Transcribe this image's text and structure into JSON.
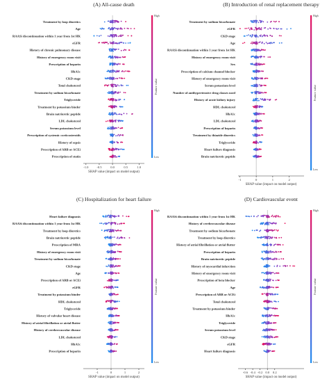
{
  "colors": {
    "high": "#e8115b",
    "mid": "#8a3bc4",
    "low": "#1f8ef0",
    "zero_line": "#aaaaaa"
  },
  "colorbar": {
    "high_label": "High",
    "low_label": "Low",
    "title": "Feature value"
  },
  "chart_data": [
    {
      "type": "scatter",
      "title": "(A) All-cause death",
      "xlabel": "SHAP value (impact on model output)",
      "xlim": [
        -1.1,
        1.2
      ],
      "xticks": [
        -1.0,
        -0.5,
        0.0,
        0.5,
        1.0
      ],
      "xtick_labels": [
        "-1.0",
        "-0.5",
        "0.0",
        "0.5",
        "1.0"
      ],
      "features": [
        {
          "name": "Treatment by loop diuretics",
          "min": -0.35,
          "max": 0.55,
          "dir": 1
        },
        {
          "name": "Age",
          "min": -0.5,
          "max": 0.9,
          "dir": 1
        },
        {
          "name": "RAASi discontinuation within 1 year from 1st HK",
          "min": -0.75,
          "max": 0.8,
          "dir": 1
        },
        {
          "name": "eGFR",
          "min": -0.55,
          "max": 0.7,
          "dir": -1
        },
        {
          "name": "History of chronic pulmonary disease",
          "min": -0.15,
          "max": 0.65,
          "dir": 1
        },
        {
          "name": "History of emergency room visit",
          "min": -0.15,
          "max": 0.5,
          "dir": 1
        },
        {
          "name": "Prescription of heparin",
          "min": -0.1,
          "max": 0.45,
          "dir": 1
        },
        {
          "name": "HbA1c",
          "min": -0.25,
          "max": 0.65,
          "dir": 1
        },
        {
          "name": "CKD stage",
          "min": -0.3,
          "max": 0.45,
          "dir": 1
        },
        {
          "name": "Total cholesterol",
          "min": -0.3,
          "max": 0.6,
          "dir": -1
        },
        {
          "name": "Treatment by sodium bicarbonate",
          "min": -0.2,
          "max": 0.5,
          "dir": 1
        },
        {
          "name": "Triglyceride",
          "min": -0.2,
          "max": 0.5,
          "dir": -1
        },
        {
          "name": "Treatment by potassium binder",
          "min": -0.15,
          "max": 0.4,
          "dir": -1
        },
        {
          "name": "Brain natriuretic peptide",
          "min": -0.2,
          "max": 0.95,
          "dir": 1
        },
        {
          "name": "LDL cholesterol",
          "min": -0.25,
          "max": 0.45,
          "dir": -1
        },
        {
          "name": "Serum potassium level",
          "min": -0.2,
          "max": 0.4,
          "dir": 1
        },
        {
          "name": "Prescription of systemic corticosteroids",
          "min": -0.1,
          "max": 0.55,
          "dir": 1
        },
        {
          "name": "History of sepsis",
          "min": -0.1,
          "max": 0.4,
          "dir": 1
        },
        {
          "name": "Prescription of ARB or ACEi",
          "min": -0.15,
          "max": 0.45,
          "dir": -1
        },
        {
          "name": "Prescription of statin",
          "min": -0.1,
          "max": 0.35,
          "dir": -1
        }
      ]
    },
    {
      "type": "scatter",
      "title": "(B) Introduction of renal replacement therapy",
      "xlabel": "SHAP value (impact on model output)",
      "xlim": [
        -1.1,
        2.9
      ],
      "xticks": [
        -1,
        0,
        1,
        2
      ],
      "xtick_labels": [
        "-1",
        "0",
        "1",
        "2"
      ],
      "features": [
        {
          "name": "Treatment by sodium bicarbonate",
          "min": -0.5,
          "max": 1.6,
          "dir": 1
        },
        {
          "name": "eGFR",
          "min": -1.0,
          "max": 2.6,
          "dir": -1
        },
        {
          "name": "CKD stage",
          "min": -0.8,
          "max": 1.7,
          "dir": 1
        },
        {
          "name": "Age",
          "min": -0.9,
          "max": 1.6,
          "dir": -1
        },
        {
          "name": "RAASi discontinuation within 1 year from 1st HK",
          "min": -0.3,
          "max": 0.6,
          "dir": 1
        },
        {
          "name": "History of emergency room visit",
          "min": -0.3,
          "max": 0.9,
          "dir": 1
        },
        {
          "name": "Sex",
          "min": -0.4,
          "max": 0.5,
          "dir": 1
        },
        {
          "name": "Prescription of calcium channel blocker",
          "min": -0.2,
          "max": 0.5,
          "dir": 1
        },
        {
          "name": "History of emergency room visit",
          "min": -0.3,
          "max": 0.7,
          "dir": 1
        },
        {
          "name": "Serum potassium level",
          "min": -0.3,
          "max": 0.6,
          "dir": 1
        },
        {
          "name": "Number of antihypertensive drug classes used",
          "min": -0.3,
          "max": 0.7,
          "dir": 1
        },
        {
          "name": "History of acute kidney injury",
          "min": -0.2,
          "max": 1.4,
          "dir": 1
        },
        {
          "name": "HDL cholesterol",
          "min": -0.2,
          "max": 0.5,
          "dir": -1
        },
        {
          "name": "HbA1c",
          "min": -0.2,
          "max": 0.5,
          "dir": 1
        },
        {
          "name": "LDL cholesterol",
          "min": -0.3,
          "max": 0.4,
          "dir": 1
        },
        {
          "name": "Prescription of heparin",
          "min": -0.15,
          "max": 0.4,
          "dir": 1
        },
        {
          "name": "Treatment by thiazide diuretics",
          "min": -0.2,
          "max": 0.4,
          "dir": 1
        },
        {
          "name": "Triglyceride",
          "min": -0.2,
          "max": 0.35,
          "dir": -1
        },
        {
          "name": "Heart failure diagnosis",
          "min": -0.15,
          "max": 0.3,
          "dir": 1
        },
        {
          "name": "Brain natriuretic peptide",
          "min": -0.2,
          "max": 0.3,
          "dir": 1
        }
      ]
    },
    {
      "type": "scatter",
      "title": "(C) Hospitalization for heart failure",
      "xlabel": "SHAP value (impact on model output)",
      "xlim": [
        -2.0,
        2.4
      ],
      "xticks": [
        -1,
        0,
        1,
        2
      ],
      "xtick_labels": [
        "-1",
        "0",
        "1",
        "2"
      ],
      "features": [
        {
          "name": "Heart failure diagnosis",
          "min": -0.6,
          "max": 1.3,
          "dir": 1
        },
        {
          "name": "RAASi discontinuation within 1 year from 1st HK",
          "min": -0.8,
          "max": 1.0,
          "dir": 1
        },
        {
          "name": "Treatment by loop diuretics",
          "min": -0.7,
          "max": 0.9,
          "dir": 1
        },
        {
          "name": "Brain natriuretic peptide",
          "min": -0.5,
          "max": 1.7,
          "dir": 1
        },
        {
          "name": "Prescription of MRA",
          "min": -0.2,
          "max": 0.8,
          "dir": 1
        },
        {
          "name": "History of emergency room visit",
          "min": -0.4,
          "max": 0.8,
          "dir": 1
        },
        {
          "name": "Treatment by sodium bicarbonate",
          "min": -0.4,
          "max": 0.7,
          "dir": 1
        },
        {
          "name": "CKD stage",
          "min": -0.4,
          "max": 0.7,
          "dir": 1
        },
        {
          "name": "Age",
          "min": -0.5,
          "max": 0.6,
          "dir": 1
        },
        {
          "name": "Prescription of ARB or ACEi",
          "min": -0.3,
          "max": 0.6,
          "dir": -1
        },
        {
          "name": "eGFR",
          "min": -0.5,
          "max": 0.6,
          "dir": -1
        },
        {
          "name": "Treatment by potassium binder",
          "min": -0.3,
          "max": 0.5,
          "dir": 1
        },
        {
          "name": "HDL cholesterol",
          "min": -0.4,
          "max": 0.6,
          "dir": -1
        },
        {
          "name": "Triglyceride",
          "min": -0.3,
          "max": 0.5,
          "dir": 1
        },
        {
          "name": "History of valvular heart disease",
          "min": -0.2,
          "max": 0.7,
          "dir": 1
        },
        {
          "name": "History of atrial fibrillation or atrial flutter",
          "min": -0.2,
          "max": 0.6,
          "dir": 1
        },
        {
          "name": "History of cerebrovascular disease",
          "min": -0.2,
          "max": 0.5,
          "dir": 1
        },
        {
          "name": "LDL cholesterol",
          "min": -0.3,
          "max": 0.5,
          "dir": -1
        },
        {
          "name": "HbA1c",
          "min": -0.3,
          "max": 0.5,
          "dir": 1
        },
        {
          "name": "Prescription of heparin",
          "min": -0.2,
          "max": 0.4,
          "dir": 1
        }
      ]
    },
    {
      "type": "scatter",
      "title": "(D) Cardiovascular event",
      "xlabel": "SHAP value (impact on model output)",
      "xlim": [
        -0.8,
        1.0
      ],
      "xticks": [
        -0.6,
        -0.4,
        -0.2,
        0.0,
        0.2
      ],
      "xtick_labels": [
        "-0.6",
        "-0.4",
        "-0.2",
        "0.0",
        "0.2"
      ],
      "features": [
        {
          "name": "RAASi discontinuation within 1 year from 1st HK",
          "min": -0.65,
          "max": 0.35,
          "dir": 1
        },
        {
          "name": "History of cerebrovascular disease",
          "min": -0.2,
          "max": 0.55,
          "dir": 1
        },
        {
          "name": "Treatment by sodium bicarbonate",
          "min": -0.45,
          "max": 0.3,
          "dir": 1
        },
        {
          "name": "Treatment by loop diuretics",
          "min": -0.3,
          "max": 0.4,
          "dir": 1
        },
        {
          "name": "History of atrial fibrillation or atrial flutter",
          "min": -0.15,
          "max": 0.45,
          "dir": 1
        },
        {
          "name": "Prescription of heparin",
          "min": -0.15,
          "max": 0.4,
          "dir": 1
        },
        {
          "name": "Brain natriuretic peptide",
          "min": -0.2,
          "max": 0.45,
          "dir": 1
        },
        {
          "name": "History of myocardial infarction",
          "min": -0.1,
          "max": 0.75,
          "dir": 1
        },
        {
          "name": "History of emergency room visit",
          "min": -0.15,
          "max": 0.35,
          "dir": 1
        },
        {
          "name": "Prescription of beta blocker",
          "min": -0.15,
          "max": 0.35,
          "dir": 1
        },
        {
          "name": "Age",
          "min": -0.2,
          "max": 0.3,
          "dir": 1
        },
        {
          "name": "Prescription of ARB or ACEi",
          "min": -0.15,
          "max": 0.3,
          "dir": -1
        },
        {
          "name": "Total cholesterol",
          "min": -0.15,
          "max": 0.3,
          "dir": -1
        },
        {
          "name": "Treatment by potassium binder",
          "min": -0.1,
          "max": 0.3,
          "dir": 1
        },
        {
          "name": "HbA1c",
          "min": -0.15,
          "max": 0.3,
          "dir": 1
        },
        {
          "name": "Triglyceride",
          "min": -0.15,
          "max": 0.25,
          "dir": 1
        },
        {
          "name": "Serum potassium level",
          "min": -0.15,
          "max": 0.25,
          "dir": 1
        },
        {
          "name": "CKD stage",
          "min": -0.15,
          "max": 0.3,
          "dir": 1
        },
        {
          "name": "eGFR",
          "min": -0.15,
          "max": 0.25,
          "dir": -1
        },
        {
          "name": "Heart failure diagnosis",
          "min": -0.1,
          "max": 0.2,
          "dir": 1
        }
      ]
    }
  ]
}
